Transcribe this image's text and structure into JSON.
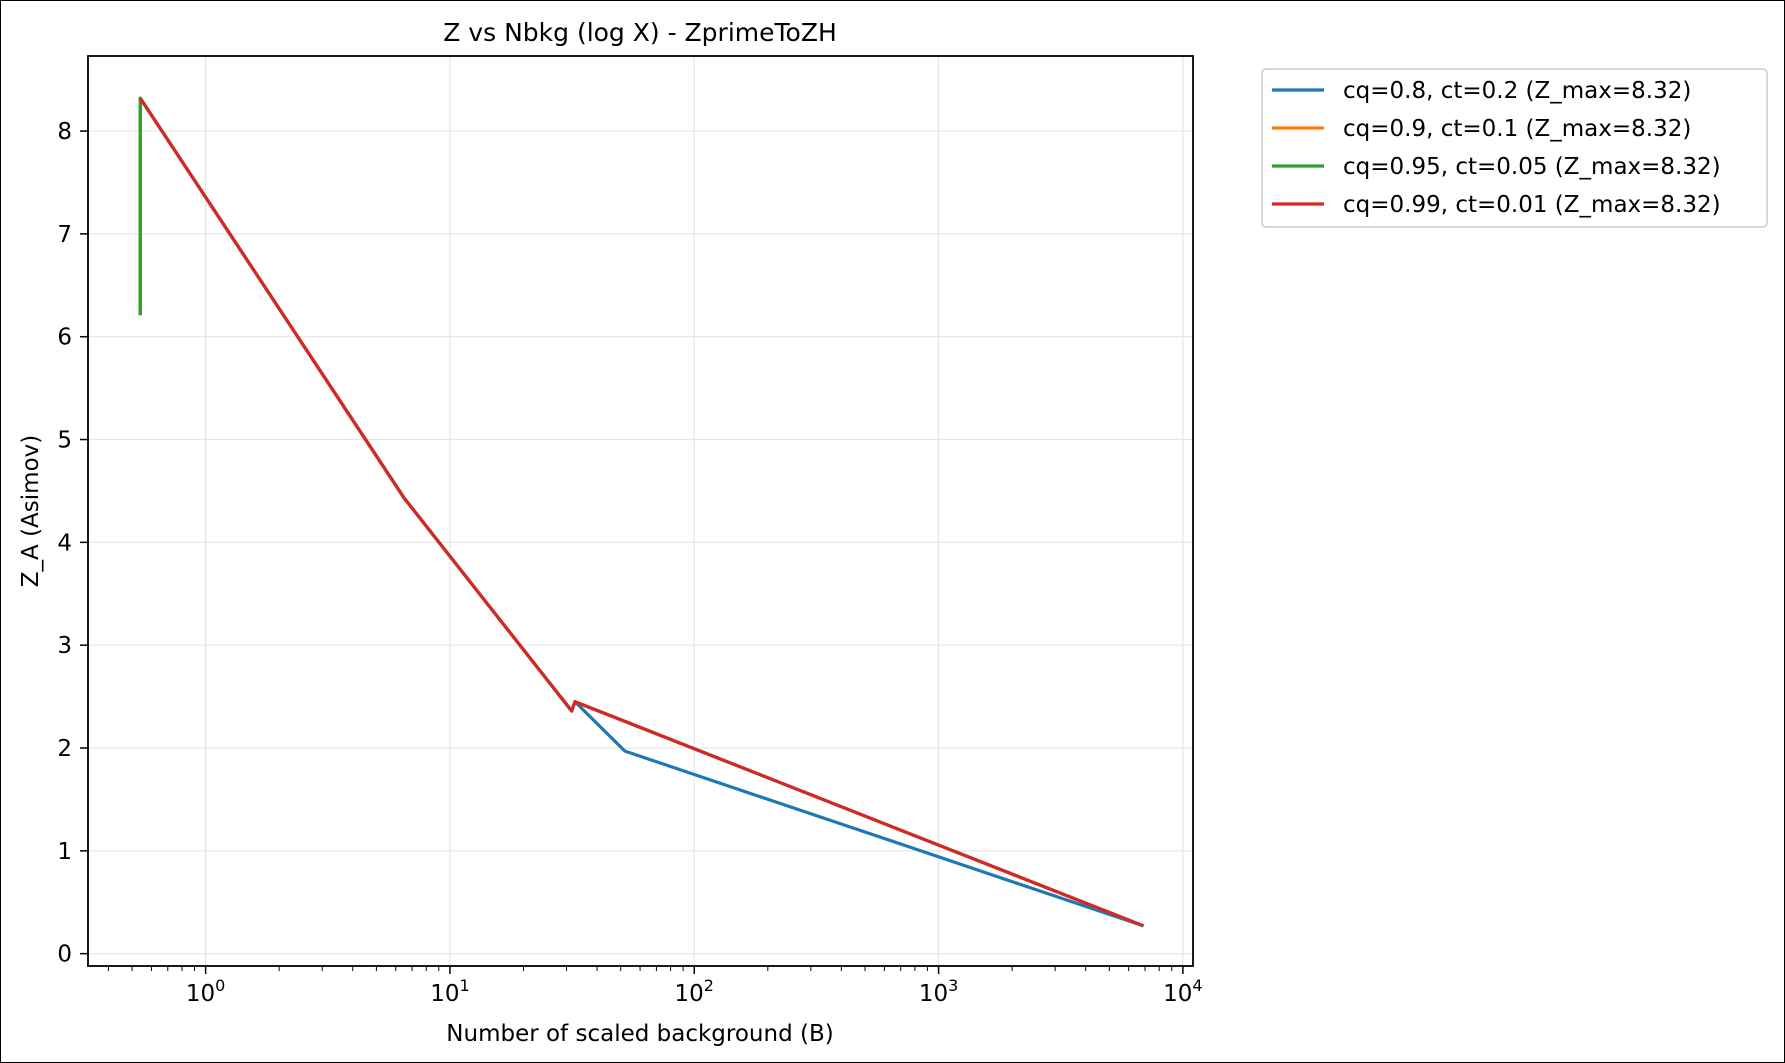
{
  "chart_data": {
    "type": "line",
    "title": "Z vs Nbkg (log X) - ZprimeToZH",
    "xlabel": "Number of scaled background (B)",
    "ylabel": "Z_A (Asimov)",
    "xscale": "log",
    "xlim": [
      0.33,
      11000
    ],
    "ylim": [
      -0.12,
      8.73
    ],
    "grid": true,
    "legend_position": "outside-top-right",
    "x_tick_labels": [
      {
        "base": "10",
        "exp": "0",
        "value": 1
      },
      {
        "base": "10",
        "exp": "1",
        "value": 10
      },
      {
        "base": "10",
        "exp": "2",
        "value": 100
      },
      {
        "base": "10",
        "exp": "3",
        "value": 1000
      },
      {
        "base": "10",
        "exp": "4",
        "value": 10000
      }
    ],
    "y_ticks": [
      0,
      1,
      2,
      3,
      4,
      5,
      6,
      7,
      8
    ],
    "y_tick_labels": [
      "0",
      "1",
      "2",
      "3",
      "4",
      "5",
      "6",
      "7",
      "8"
    ],
    "series": [
      {
        "name": "cq=0.8, ct=0.2 (Z_max=8.32)",
        "color": "#1f77b4",
        "x": [
          0.54,
          0.54,
          6.5,
          31.5,
          32.5,
          52,
          6900
        ],
        "y": [
          6.21,
          8.32,
          4.43,
          2.36,
          2.45,
          1.97,
          0.27
        ]
      },
      {
        "name": "cq=0.9, ct=0.1 (Z_max=8.32)",
        "color": "#ff7f0e",
        "x": [
          0.54,
          0.54,
          6.5,
          31.5,
          32.5,
          6900
        ],
        "y": [
          6.21,
          8.32,
          4.43,
          2.36,
          2.45,
          0.27
        ]
      },
      {
        "name": "cq=0.95, ct=0.05 (Z_max=8.32)",
        "color": "#2ca02c",
        "x": [
          0.54,
          0.54,
          6.5,
          31.5,
          32.5,
          6900
        ],
        "y": [
          6.21,
          8.32,
          4.43,
          2.36,
          2.45,
          0.27
        ]
      },
      {
        "name": "cq=0.99, ct=0.01 (Z_max=8.32)",
        "color": "#d62728",
        "x": [
          0.54,
          6.5,
          31.5,
          32.5,
          6900
        ],
        "y": [
          8.32,
          4.43,
          2.36,
          2.45,
          0.27
        ]
      }
    ]
  }
}
